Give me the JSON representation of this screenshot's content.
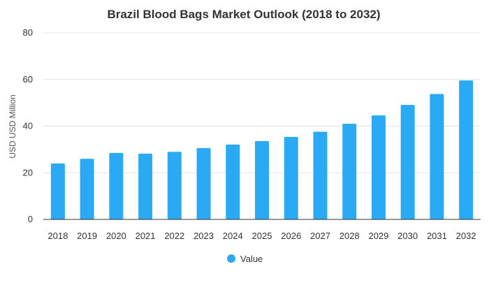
{
  "chart_data": {
    "type": "bar",
    "title": "Brazil Blood Bags Market Outlook (2018 to 2032)",
    "xlabel": "",
    "ylabel": "USD USD Million",
    "ylim": [
      0,
      80
    ],
    "yticks": [
      0,
      20,
      40,
      60,
      80
    ],
    "grid": true,
    "legend_position": "bottom",
    "categories": [
      "2018",
      "2019",
      "2020",
      "2021",
      "2022",
      "2023",
      "2024",
      "2025",
      "2026",
      "2027",
      "2028",
      "2029",
      "2030",
      "2031",
      "2032"
    ],
    "series": [
      {
        "name": "Value",
        "color": "#2aaaf5",
        "values": [
          24.0,
          26.0,
          28.5,
          28.2,
          29.0,
          30.6,
          32.1,
          33.6,
          35.4,
          37.6,
          41.0,
          44.6,
          49.1,
          53.8,
          59.6
        ]
      }
    ]
  }
}
